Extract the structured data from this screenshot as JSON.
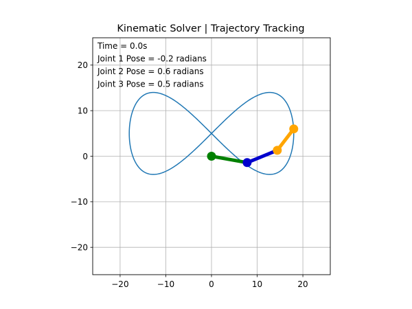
{
  "chart_data": {
    "type": "line",
    "title": "Kinematic Solver | Trajectory Tracking",
    "xlabel": "",
    "ylabel": "",
    "xlim": [
      -26,
      26
    ],
    "ylim": [
      -26,
      26
    ],
    "xticks": [
      -20,
      -10,
      0,
      10,
      20
    ],
    "yticks": [
      -20,
      -10,
      0,
      10,
      20
    ],
    "xtick_labels": [
      "−20",
      "−10",
      "0",
      "10",
      "20"
    ],
    "ytick_labels": [
      "−20",
      "−10",
      "0",
      "10",
      "20"
    ],
    "grid": true,
    "annotations": [
      "Time = 0.0s",
      "Joint 1 Pose = -0.2 radians",
      "Joint 2 Pose = 0.6 radians",
      "Joint 3 Pose = 0.5 radians"
    ],
    "trajectory": {
      "shape": "figure-eight",
      "center": [
        0,
        5
      ],
      "x_amplitude": 18,
      "y_amplitude": 9,
      "color": "#1f77b4"
    },
    "arm": {
      "joints": [
        [
          0,
          0
        ],
        [
          7.8,
          -1.4
        ],
        [
          14.4,
          1.3
        ],
        [
          18.0,
          6.0
        ]
      ],
      "link_colors": [
        "#008000",
        "#0000cd",
        "#ffa500"
      ],
      "joint_colors": [
        "#008000",
        "#0000cd",
        "#ffa500",
        "#ffa500"
      ]
    }
  }
}
